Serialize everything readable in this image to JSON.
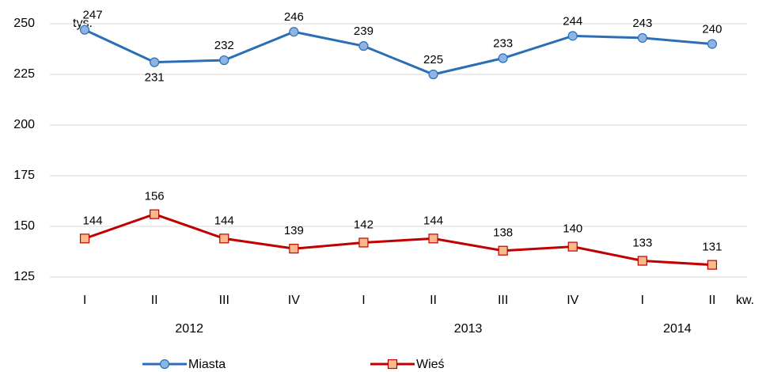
{
  "chart_data": {
    "type": "line",
    "categories": [
      "I",
      "II",
      "III",
      "IV",
      "I",
      "II",
      "III",
      "IV",
      "I",
      "II"
    ],
    "category_groups": [
      {
        "label": "2012",
        "span": 4
      },
      {
        "label": "2013",
        "span": 4
      },
      {
        "label": "2014",
        "span": 2
      }
    ],
    "y_unit": "tys.",
    "x_unit": "kw.",
    "series": [
      {
        "name": "Miasta",
        "color": "#2a6fb6",
        "marker": "circle",
        "marker_fill": "#8db4e2",
        "label_color": "#3a62a7",
        "values": [
          247,
          231,
          232,
          246,
          239,
          225,
          233,
          244,
          243,
          240
        ]
      },
      {
        "name": "Wieś",
        "color": "#c00000",
        "marker": "square",
        "marker_fill": "#f9b98a",
        "label_color": "#c00000",
        "values": [
          144,
          156,
          144,
          139,
          142,
          144,
          138,
          140,
          133,
          131
        ]
      }
    ],
    "ylim": [
      125,
      250
    ],
    "yticks": [
      125,
      150,
      175,
      200,
      225,
      250
    ],
    "grid": true
  }
}
